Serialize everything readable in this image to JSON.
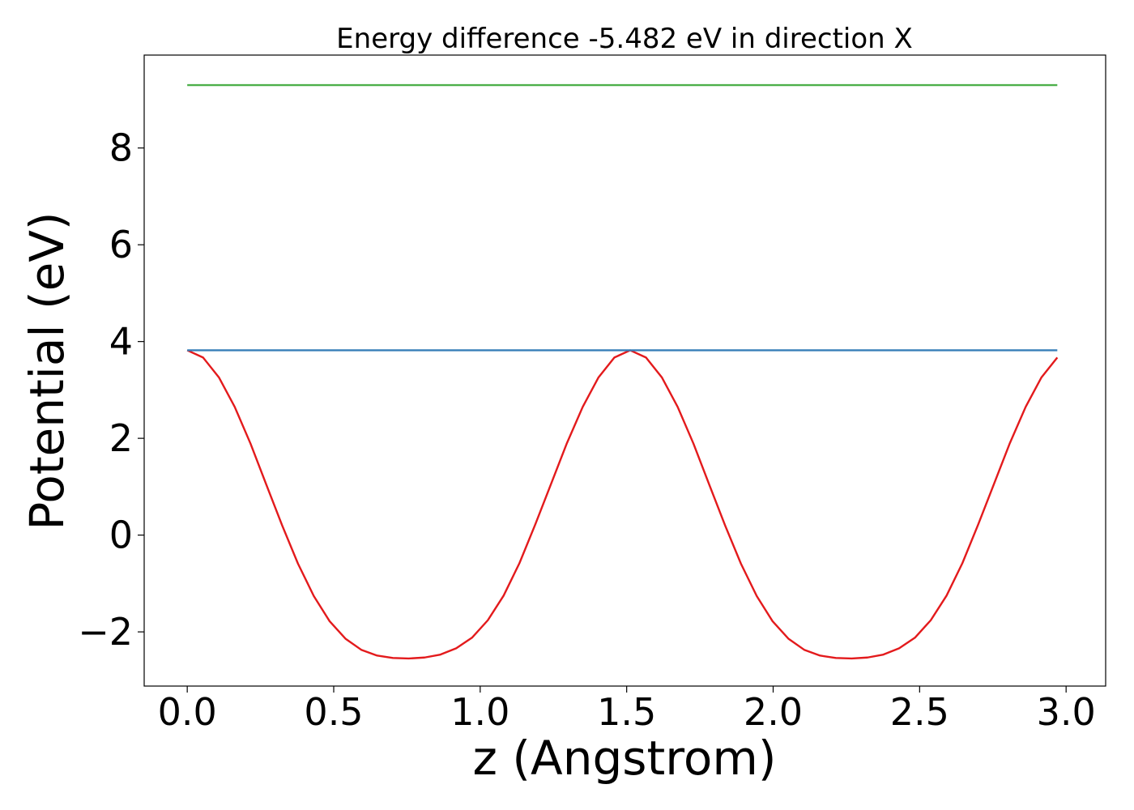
{
  "chart_data": {
    "type": "line",
    "title": "Energy difference -5.482 eV in direction X",
    "xlabel": "z (Angstrom)",
    "ylabel": "Potential (eV)",
    "xlim": [
      -0.147,
      3.135
    ],
    "ylim": [
      -3.12,
      9.92
    ],
    "xticks": [
      0.0,
      0.5,
      1.0,
      1.5,
      2.0,
      2.5,
      3.0
    ],
    "xtick_labels": [
      "0.0",
      "0.5",
      "1.0",
      "1.5",
      "2.0",
      "2.5",
      "3.0"
    ],
    "yticks": [
      -2,
      0,
      2,
      4,
      6,
      8
    ],
    "ytick_labels": [
      "−2",
      "0",
      "2",
      "4",
      "6",
      "8"
    ],
    "grid": false,
    "colors": {
      "potential": "#e31a1c",
      "reference_low": "#377eb8",
      "reference_high": "#4daf4a"
    },
    "series": [
      {
        "key": "potential",
        "x": [
          0.0,
          0.054,
          0.108,
          0.162,
          0.216,
          0.27,
          0.324,
          0.378,
          0.432,
          0.486,
          0.54,
          0.594,
          0.648,
          0.702,
          0.756,
          0.81,
          0.864,
          0.918,
          0.972,
          1.026,
          1.08,
          1.134,
          1.188,
          1.242,
          1.296,
          1.35,
          1.404,
          1.458,
          1.512,
          1.566,
          1.62,
          1.674,
          1.728,
          1.782,
          1.836,
          1.89,
          1.944,
          1.998,
          2.052,
          2.106,
          2.16,
          2.214,
          2.268,
          2.322,
          2.376,
          2.43,
          2.484,
          2.538,
          2.592,
          2.646,
          2.7,
          2.754,
          2.808,
          2.862,
          2.916,
          2.97
        ],
        "y": [
          3.82,
          3.67,
          3.26,
          2.65,
          1.89,
          1.04,
          0.2,
          -0.59,
          -1.26,
          -1.78,
          -2.14,
          -2.37,
          -2.49,
          -2.54,
          -2.55,
          -2.53,
          -2.47,
          -2.34,
          -2.12,
          -1.76,
          -1.25,
          -0.58,
          0.22,
          1.06,
          1.9,
          2.65,
          3.26,
          3.67,
          3.82,
          3.67,
          3.26,
          2.65,
          1.89,
          1.04,
          0.2,
          -0.59,
          -1.26,
          -1.78,
          -2.14,
          -2.37,
          -2.49,
          -2.54,
          -2.55,
          -2.53,
          -2.47,
          -2.34,
          -2.12,
          -1.76,
          -1.25,
          -0.58,
          0.22,
          1.06,
          1.9,
          2.65,
          3.26,
          3.67
        ]
      },
      {
        "key": "reference_low",
        "x": [
          0.0,
          2.97
        ],
        "y": [
          3.82,
          3.82
        ]
      },
      {
        "key": "reference_high",
        "x": [
          0.0,
          2.97
        ],
        "y": [
          9.3,
          9.3
        ]
      }
    ]
  }
}
